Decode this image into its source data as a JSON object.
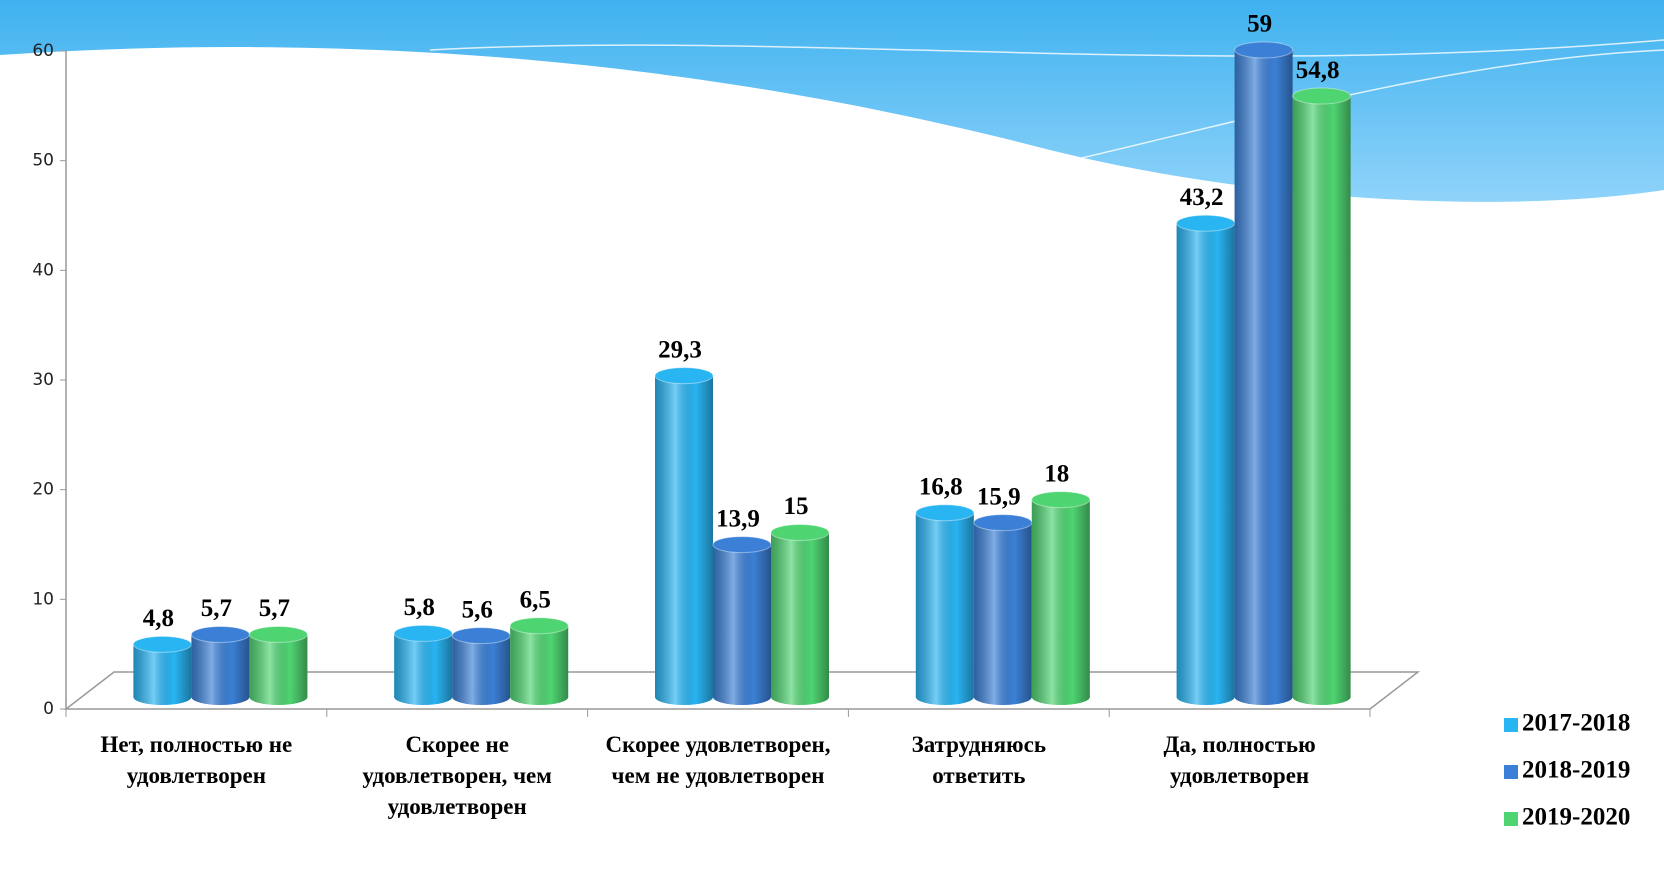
{
  "chart_data": {
    "type": "bar",
    "categories": [
      "Нет, полностью не удовлетворен",
      "Скорее не удовлетворен, чем удовлетворен",
      "Скорее удовлетворен, чем не удовлетворен",
      "Затрудняюсь ответить",
      "Да, полностью удовлетворен"
    ],
    "series": [
      {
        "name": "2017-2018",
        "color": "#29b4f2",
        "values": [
          4.8,
          5.8,
          29.3,
          16.8,
          43.2
        ],
        "value_labels": [
          "4,8",
          "5,8",
          "29,3",
          "16,8",
          "43,2"
        ]
      },
      {
        "name": "2018-2019",
        "color": "#3b80d6",
        "values": [
          5.7,
          5.6,
          13.9,
          15.9,
          59
        ],
        "value_labels": [
          "5,7",
          "5,6",
          "13,9",
          "15,9",
          "59"
        ]
      },
      {
        "name": "2019-2020",
        "color": "#4fd472",
        "values": [
          5.7,
          6.5,
          15,
          18,
          54.8
        ],
        "value_labels": [
          "5,7",
          "6,5",
          "15",
          "18",
          "54,8"
        ]
      }
    ],
    "ylim": [
      0,
      60
    ],
    "yticks": [
      0,
      10,
      20,
      30,
      40,
      50,
      60
    ],
    "legend": "right"
  }
}
